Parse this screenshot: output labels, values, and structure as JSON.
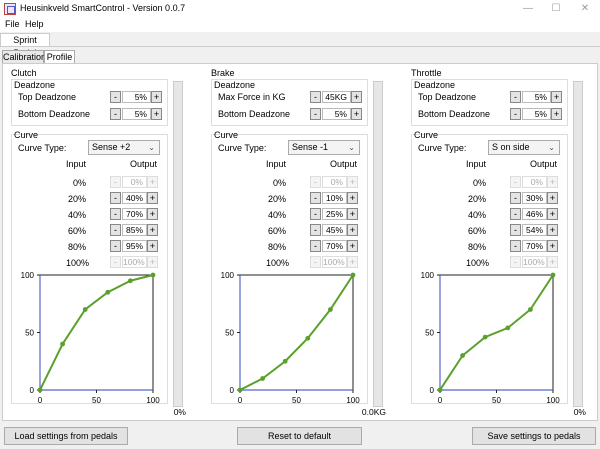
{
  "window": {
    "title": "Heusinkveld SmartControl - Version 0.0.7",
    "minimize": "—",
    "maximize": "☐",
    "close": "✕"
  },
  "menu": [
    {
      "label": "File"
    },
    {
      "label": "Help"
    }
  ],
  "device_tab": "Sprint Pedal",
  "tabs": [
    {
      "label": "Calibration"
    },
    {
      "label": "Profile"
    }
  ],
  "icons": {
    "app": "app-icon",
    "dropdown": "chevron-down-icon"
  },
  "headers": {
    "input": "Input",
    "output": "Output"
  },
  "step": {
    "minus": "-",
    "plus": "+"
  },
  "pedals": [
    {
      "key": "clutch",
      "title": "Clutch",
      "deadzone_title": "Deadzone",
      "fields": [
        {
          "label": "Top Deadzone",
          "value": "5%"
        },
        {
          "label": "Bottom Deadzone",
          "value": "5%"
        }
      ],
      "curve_title": "Curve",
      "curve_type_label": "Curve Type:",
      "curve_type": "Sense +2",
      "inputs": [
        "0%",
        "20%",
        "40%",
        "60%",
        "80%",
        "100%"
      ],
      "outputs": [
        "0%",
        "40%",
        "70%",
        "85%",
        "95%",
        "100%"
      ],
      "level": 0,
      "level_text": "0%",
      "chart_data": {
        "type": "line",
        "x": [
          0,
          20,
          40,
          60,
          80,
          100
        ],
        "y": [
          0,
          40,
          70,
          85,
          95,
          100
        ],
        "xlim": [
          0,
          100
        ],
        "ylim": [
          0,
          100
        ],
        "x_ticks": [
          "0",
          "50",
          "100"
        ],
        "y_ticks": [
          "0",
          "50",
          "100"
        ],
        "line_color": "#5aa02c"
      }
    },
    {
      "key": "brake",
      "title": "Brake",
      "deadzone_title": "Deadzone",
      "fields": [
        {
          "label": "Max Force in KG",
          "value": "45KG"
        },
        {
          "label": "Bottom Deadzone",
          "value": "5%"
        }
      ],
      "curve_title": "Curve",
      "curve_type_label": "Curve Type:",
      "curve_type": "Sense -1",
      "inputs": [
        "0%",
        "20%",
        "40%",
        "60%",
        "80%",
        "100%"
      ],
      "outputs": [
        "0%",
        "10%",
        "25%",
        "45%",
        "70%",
        "100%"
      ],
      "level": 0,
      "level_text": "0.0KG",
      "chart_data": {
        "type": "line",
        "x": [
          0,
          20,
          40,
          60,
          80,
          100
        ],
        "y": [
          0,
          10,
          25,
          45,
          70,
          100
        ],
        "xlim": [
          0,
          100
        ],
        "ylim": [
          0,
          100
        ],
        "x_ticks": [
          "0",
          "50",
          "100"
        ],
        "y_ticks": [
          "0",
          "50",
          "100"
        ],
        "line_color": "#5aa02c"
      }
    },
    {
      "key": "throttle",
      "title": "Throttle",
      "deadzone_title": "Deadzone",
      "fields": [
        {
          "label": "Top Deadzone",
          "value": "5%"
        },
        {
          "label": "Bottom Deadzone",
          "value": "5%"
        }
      ],
      "curve_title": "Curve",
      "curve_type_label": "Curve Type:",
      "curve_type": "S on side",
      "inputs": [
        "0%",
        "20%",
        "40%",
        "60%",
        "80%",
        "100%"
      ],
      "outputs": [
        "0%",
        "30%",
        "46%",
        "54%",
        "70%",
        "100%"
      ],
      "level": 0,
      "level_text": "0%",
      "chart_data": {
        "type": "line",
        "x": [
          0,
          20,
          40,
          60,
          80,
          100
        ],
        "y": [
          0,
          30,
          46,
          54,
          70,
          100
        ],
        "xlim": [
          0,
          100
        ],
        "ylim": [
          0,
          100
        ],
        "x_ticks": [
          "0",
          "50",
          "100"
        ],
        "y_ticks": [
          "0",
          "50",
          "100"
        ],
        "line_color": "#5aa02c"
      }
    }
  ],
  "actions": {
    "load": "Load settings from pedals",
    "reset": "Reset to default",
    "save": "Save settings to pedals"
  },
  "colors": {
    "accent": "#7cb342",
    "axis": "#5566cc"
  }
}
